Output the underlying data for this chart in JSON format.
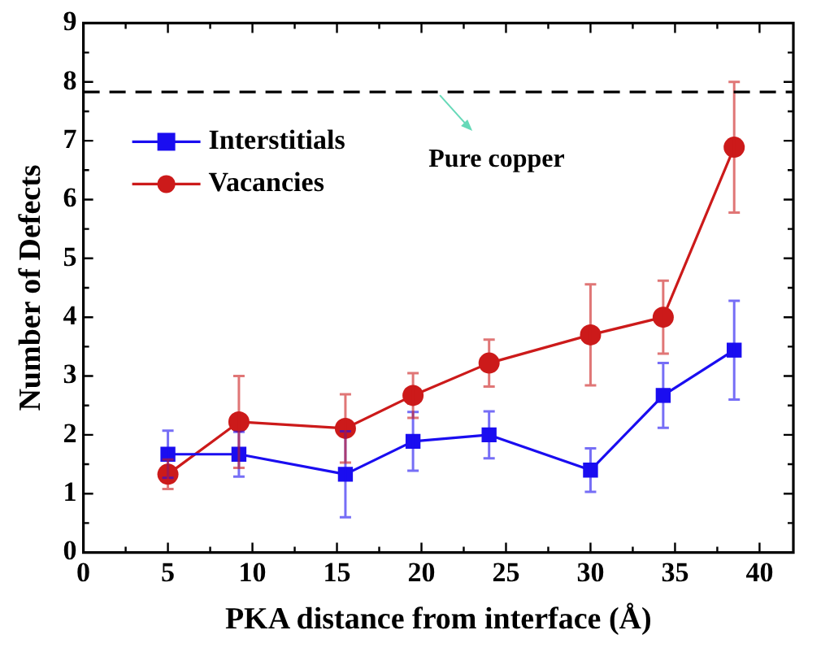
{
  "chart_data": {
    "type": "line",
    "xlabel": "PKA distance from interface (Å)",
    "ylabel": "Number of Defects",
    "x": [
      5,
      9.2,
      15.5,
      19.5,
      24,
      30,
      34.3,
      38.5
    ],
    "series": [
      {
        "name": "Interstitials",
        "color": "#1a0df0",
        "marker": "square",
        "values": [
          1.67,
          1.67,
          1.33,
          1.89,
          2.0,
          1.4,
          2.67,
          3.44
        ],
        "errors": [
          0.4,
          0.38,
          0.73,
          0.5,
          0.4,
          0.37,
          0.55,
          0.84
        ]
      },
      {
        "name": "Vacancies",
        "color": "#cc1a1a",
        "marker": "circle",
        "values": [
          1.33,
          2.22,
          2.11,
          2.67,
          3.22,
          3.7,
          4.0,
          6.89
        ],
        "errors": [
          0.25,
          0.78,
          0.58,
          0.38,
          0.4,
          0.86,
          0.62,
          1.11
        ]
      }
    ],
    "xlim": [
      0,
      42
    ],
    "xticks": [
      0,
      5,
      10,
      15,
      20,
      25,
      30,
      35,
      40
    ],
    "ylim": [
      0,
      9
    ],
    "yticks": [
      0,
      1,
      2,
      3,
      4,
      5,
      6,
      7,
      8,
      9
    ],
    "ref_lines": [
      {
        "axis": "y",
        "value": 7.83,
        "label": "Pure copper",
        "color": "#000000",
        "line_style": "dashed"
      }
    ],
    "grid": false,
    "legend": "top left"
  }
}
